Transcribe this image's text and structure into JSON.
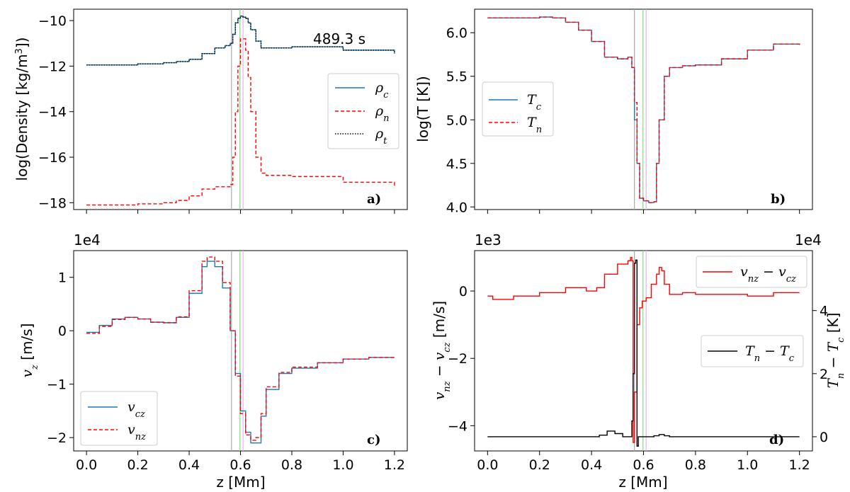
{
  "colors": {
    "charged": "#1f77b4",
    "neutral": "#ff0000",
    "total": "#000000",
    "diff_v": "#ff0000",
    "diff_T": "#000000",
    "marker_gray": "#aaaaaa",
    "marker_green": "#7ddc7d",
    "marker_violet": "#e4b2ee"
  },
  "chart_data": [
    {
      "id": "a",
      "type": "line",
      "tag": "a)",
      "annotation": "489.3 s",
      "xlabel": "",
      "ylabel": "log(Density [kg/m³])",
      "xlim": [
        -0.05,
        1.25
      ],
      "ylim": [
        -18.3,
        -9.5
      ],
      "xticks": [
        0.0,
        0.2,
        0.4,
        0.6,
        0.8,
        1.0,
        1.2
      ],
      "show_xticklabels": false,
      "yticks": [
        -18,
        -16,
        -14,
        -12,
        -10
      ],
      "yticklabels": [
        "−18",
        "−16",
        "−14",
        "−12",
        "−10"
      ],
      "legend": [
        "ρ_c",
        "ρ_n",
        "ρ_t"
      ],
      "legend_loc": "center-right",
      "markers": [
        0.565,
        0.598,
        0.61
      ],
      "series": [
        {
          "name": "ρ_c",
          "style": "solid",
          "color_key": "charged",
          "x": [
            0.0,
            0.1,
            0.2,
            0.3,
            0.35,
            0.4,
            0.45,
            0.5,
            0.54,
            0.56,
            0.57,
            0.58,
            0.59,
            0.6,
            0.61,
            0.62,
            0.63,
            0.64,
            0.66,
            0.68,
            0.7,
            0.8,
            1.0,
            1.2
          ],
          "y": [
            -11.95,
            -11.95,
            -11.9,
            -11.85,
            -11.8,
            -11.7,
            -11.45,
            -11.2,
            -11.1,
            -11.0,
            -10.6,
            -10.1,
            -9.9,
            -9.8,
            -9.85,
            -9.9,
            -10.1,
            -10.4,
            -10.9,
            -11.2,
            -11.2,
            -11.15,
            -11.3,
            -11.45
          ]
        },
        {
          "name": "ρ_n",
          "style": "dashed",
          "color_key": "neutral",
          "x": [
            0.0,
            0.1,
            0.2,
            0.3,
            0.35,
            0.4,
            0.45,
            0.5,
            0.54,
            0.56,
            0.57,
            0.58,
            0.59,
            0.6,
            0.61,
            0.62,
            0.63,
            0.64,
            0.66,
            0.68,
            0.7,
            0.8,
            1.0,
            1.2
          ],
          "y": [
            -18.1,
            -18.1,
            -18.05,
            -18.0,
            -17.9,
            -17.7,
            -17.4,
            -17.3,
            -17.3,
            -17.2,
            -16.0,
            -14.0,
            -12.0,
            -10.8,
            -10.8,
            -11.3,
            -12.5,
            -14.0,
            -16.0,
            -16.7,
            -16.8,
            -16.85,
            -17.1,
            -17.35
          ]
        },
        {
          "name": "ρ_t",
          "style": "dotted",
          "color_key": "total",
          "x": [
            0.0,
            0.1,
            0.2,
            0.3,
            0.35,
            0.4,
            0.45,
            0.5,
            0.54,
            0.56,
            0.57,
            0.58,
            0.59,
            0.6,
            0.61,
            0.62,
            0.63,
            0.64,
            0.66,
            0.68,
            0.7,
            0.8,
            1.0,
            1.2
          ],
          "y": [
            -11.95,
            -11.95,
            -11.9,
            -11.85,
            -11.8,
            -11.7,
            -11.45,
            -11.2,
            -11.1,
            -11.0,
            -10.6,
            -10.1,
            -9.9,
            -9.8,
            -9.85,
            -9.9,
            -10.1,
            -10.4,
            -10.9,
            -11.2,
            -11.2,
            -11.15,
            -11.3,
            -11.45
          ]
        }
      ]
    },
    {
      "id": "b",
      "type": "line",
      "tag": "b)",
      "xlabel": "",
      "ylabel": "log(T [K])",
      "xlim": [
        -0.05,
        1.25
      ],
      "ylim": [
        3.97,
        6.27
      ],
      "xticks": [
        0.0,
        0.2,
        0.4,
        0.6,
        0.8,
        1.0,
        1.2
      ],
      "show_xticklabels": false,
      "yticks": [
        4.0,
        4.5,
        5.0,
        5.5,
        6.0
      ],
      "yticklabels": [
        "4.0",
        "4.5",
        "5.0",
        "5.5",
        "6.0"
      ],
      "legend": [
        "T_c",
        "T_n"
      ],
      "legend_loc": "center-left",
      "markers": [
        0.565,
        0.598,
        0.61
      ],
      "series": [
        {
          "name": "T_c",
          "style": "solid",
          "color_key": "charged",
          "x": [
            0.0,
            0.1,
            0.2,
            0.25,
            0.3,
            0.35,
            0.4,
            0.45,
            0.5,
            0.54,
            0.555,
            0.565,
            0.575,
            0.585,
            0.6,
            0.62,
            0.64,
            0.65,
            0.66,
            0.68,
            0.7,
            0.75,
            0.8,
            0.9,
            1.0,
            1.1,
            1.2
          ],
          "y": [
            6.17,
            6.17,
            6.18,
            6.17,
            6.12,
            6.03,
            5.9,
            5.72,
            5.7,
            5.72,
            5.6,
            5.0,
            4.5,
            4.1,
            4.07,
            4.05,
            4.06,
            4.5,
            5.0,
            5.5,
            5.6,
            5.62,
            5.63,
            5.7,
            5.8,
            5.87,
            5.86
          ]
        },
        {
          "name": "T_n",
          "style": "dashed",
          "color_key": "neutral",
          "x": [
            0.0,
            0.1,
            0.2,
            0.25,
            0.3,
            0.35,
            0.4,
            0.45,
            0.5,
            0.54,
            0.555,
            0.565,
            0.575,
            0.585,
            0.6,
            0.62,
            0.64,
            0.65,
            0.66,
            0.68,
            0.7,
            0.75,
            0.8,
            0.9,
            1.0,
            1.1,
            1.2
          ],
          "y": [
            6.17,
            6.17,
            6.18,
            6.17,
            6.12,
            6.03,
            5.9,
            5.72,
            5.7,
            5.72,
            5.6,
            5.2,
            4.5,
            4.1,
            4.07,
            4.05,
            4.06,
            4.5,
            5.0,
            5.5,
            5.6,
            5.62,
            5.63,
            5.7,
            5.8,
            5.87,
            5.86
          ]
        }
      ]
    },
    {
      "id": "c",
      "type": "line",
      "tag": "c)",
      "offset_label": "1e4",
      "xlabel": "z [Mm]",
      "ylabel": "v_z [m/s]",
      "xlim": [
        -0.05,
        1.25
      ],
      "ylim": [
        -2.25,
        1.5
      ],
      "xticks": [
        0.0,
        0.2,
        0.4,
        0.6,
        0.8,
        1.0,
        1.2
      ],
      "xticklabels": [
        "0.0",
        "0.2",
        "0.4",
        "0.6",
        "0.8",
        "1.0",
        "1.2"
      ],
      "show_xticklabels": true,
      "yticks": [
        -2,
        -1,
        0,
        1
      ],
      "yticklabels": [
        "−2",
        "−1",
        "0",
        "1"
      ],
      "legend": [
        "v_cz",
        "v_nz"
      ],
      "legend_loc": "lower-left",
      "markers": [
        0.565,
        0.598,
        0.61
      ],
      "series": [
        {
          "name": "v_cz",
          "style": "solid",
          "color_key": "charged",
          "x": [
            0.0,
            0.05,
            0.1,
            0.15,
            0.2,
            0.25,
            0.3,
            0.35,
            0.4,
            0.45,
            0.47,
            0.5,
            0.53,
            0.56,
            0.58,
            0.6,
            0.62,
            0.64,
            0.66,
            0.68,
            0.7,
            0.75,
            0.8,
            0.9,
            1.0,
            1.1,
            1.2
          ],
          "y": [
            -0.03,
            0.1,
            0.22,
            0.25,
            0.22,
            0.16,
            0.15,
            0.25,
            0.7,
            1.2,
            1.3,
            1.2,
            0.8,
            0.0,
            -0.8,
            -1.5,
            -1.9,
            -2.1,
            -2.1,
            -1.6,
            -1.1,
            -0.8,
            -0.7,
            -0.6,
            -0.53,
            -0.5,
            -0.5
          ]
        },
        {
          "name": "v_nz",
          "style": "dashed",
          "color_key": "neutral",
          "x": [
            0.0,
            0.05,
            0.1,
            0.15,
            0.2,
            0.25,
            0.3,
            0.35,
            0.4,
            0.45,
            0.47,
            0.5,
            0.53,
            0.56,
            0.58,
            0.6,
            0.62,
            0.64,
            0.66,
            0.68,
            0.7,
            0.75,
            0.8,
            0.9,
            1.0,
            1.1,
            1.2
          ],
          "y": [
            -0.05,
            0.08,
            0.21,
            0.25,
            0.22,
            0.16,
            0.15,
            0.26,
            0.75,
            1.3,
            1.38,
            1.3,
            0.9,
            0.0,
            -0.85,
            -1.55,
            -1.95,
            -2.05,
            -2.0,
            -1.55,
            -1.05,
            -0.78,
            -0.68,
            -0.6,
            -0.53,
            -0.5,
            -0.5
          ]
        }
      ]
    },
    {
      "id": "d",
      "type": "line",
      "tag": "d)",
      "offset_label_left": "1e3",
      "offset_label_right": "1e4",
      "xlabel": "z [Mm]",
      "ylabel": "v_nz − v_cz [m/s]",
      "ylabel_right": "T_n − T_c [K]",
      "xlim": [
        -0.05,
        1.25
      ],
      "ylim": [
        -4.75,
        1.2
      ],
      "ylim_right": [
        -0.45,
        5.9
      ],
      "xticks": [
        0.0,
        0.2,
        0.4,
        0.6,
        0.8,
        1.0,
        1.2
      ],
      "xticklabels": [
        "0.0",
        "0.2",
        "0.4",
        "0.6",
        "0.8",
        "1.0",
        "1.2"
      ],
      "show_xticklabels": true,
      "yticks": [
        -4,
        -2,
        0
      ],
      "yticklabels": [
        "−4",
        "−2",
        "0"
      ],
      "yticks_right": [
        0,
        2,
        4
      ],
      "yticklabels_right": [
        "0",
        "2",
        "4"
      ],
      "legend": [
        "v_nz − v_cz",
        "T_n − T_c"
      ],
      "legend_loc": "upper-right / center-right",
      "markers": [
        0.565,
        0.598,
        0.61
      ],
      "series": [
        {
          "name": "v_nz − v_cz",
          "axis": "left",
          "style": "solid",
          "color_key": "diff_v",
          "x": [
            0.0,
            0.02,
            0.1,
            0.2,
            0.3,
            0.35,
            0.38,
            0.42,
            0.45,
            0.5,
            0.54,
            0.55,
            0.555,
            0.56,
            0.565,
            0.575,
            0.585,
            0.595,
            0.6,
            0.61,
            0.63,
            0.65,
            0.66,
            0.67,
            0.68,
            0.7,
            0.75,
            0.8,
            0.9,
            1.0,
            1.1,
            1.2
          ],
          "y": [
            -0.15,
            -0.25,
            -0.15,
            -0.05,
            0.1,
            0.1,
            0.0,
            0.1,
            0.5,
            0.8,
            0.9,
            1.0,
            0.9,
            -4.5,
            -3.0,
            -1.0,
            -0.5,
            -0.3,
            -0.3,
            -0.2,
            0.2,
            0.5,
            0.7,
            0.6,
            0.2,
            -0.1,
            -0.05,
            -0.1,
            -0.1,
            -0.15,
            -0.05,
            -0.05
          ]
        },
        {
          "name": "T_n − T_c",
          "axis": "right",
          "style": "solid",
          "color_key": "diff_T",
          "x": [
            0.0,
            0.1,
            0.2,
            0.3,
            0.4,
            0.43,
            0.46,
            0.49,
            0.52,
            0.54,
            0.555,
            0.56,
            0.565,
            0.57,
            0.575,
            0.58,
            0.59,
            0.6,
            0.62,
            0.64,
            0.66,
            0.68,
            0.7,
            0.8,
            1.0,
            1.2
          ],
          "y": [
            0.0,
            0.0,
            0.0,
            0.0,
            0.0,
            0.05,
            0.18,
            0.1,
            0.0,
            0.0,
            0.5,
            2.0,
            5.5,
            5.6,
            -0.3,
            0.0,
            0.0,
            0.0,
            0.0,
            0.03,
            0.07,
            0.03,
            0.0,
            0.0,
            0.0,
            0.0
          ]
        }
      ]
    }
  ]
}
